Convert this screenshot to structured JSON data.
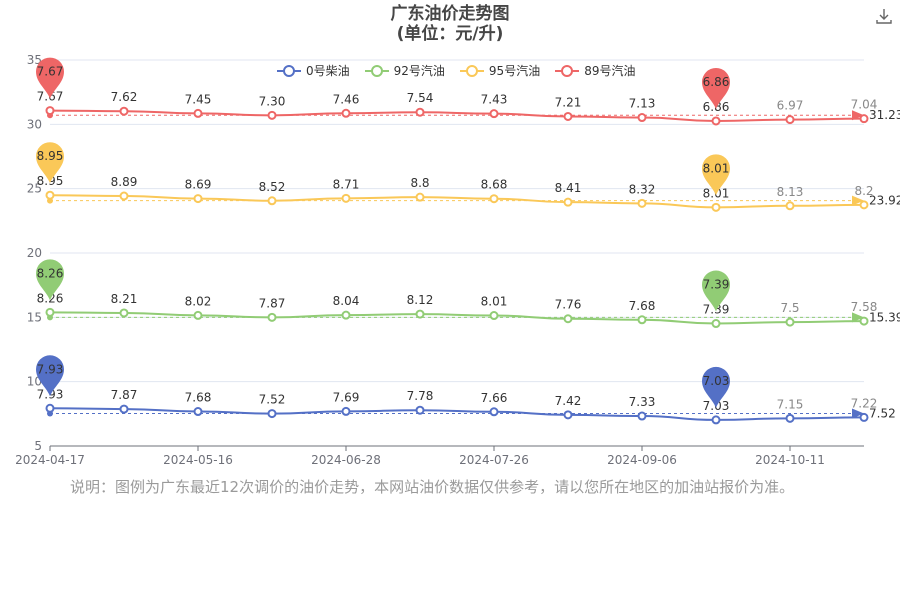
{
  "title_line1": "广东油价走势图",
  "title_line2": "(单位：元/升)",
  "note": "说明：图例为广东最近12次调价的油价走势，本网站油价数据仅供参考，请以您所在地区的加油站报价为准。",
  "icons": {
    "download": "download-icon"
  },
  "chart_data": {
    "type": "line",
    "title": "广东油价走势图",
    "subtitle": "(单位：元/升)",
    "x_tick_labels": [
      "2024-04-17",
      "2024-05-16",
      "2024-06-28",
      "2024-07-26",
      "2024-09-06",
      "2024-10-11"
    ],
    "y_tick_labels": [
      "5",
      "10",
      "15",
      "20",
      "25",
      "30",
      "35"
    ],
    "ylim": [
      5,
      35
    ],
    "grid": true,
    "legend_position": "top",
    "series": [
      {
        "name": "0号柴油",
        "color": "#5470c6",
        "values": [
          7.93,
          7.87,
          7.68,
          7.52,
          7.69,
          7.78,
          7.66,
          7.42,
          7.33,
          7.03,
          7.15,
          7.22
        ],
        "labels": [
          "7.93",
          "7.87",
          "7.68",
          "7.52",
          "7.69",
          "7.78",
          "7.66",
          "7.42",
          "7.33",
          "7.03",
          "7.15",
          "7.22"
        ],
        "max_label": "7.93",
        "min_label": "7.03",
        "avg_label": "7.52"
      },
      {
        "name": "92号汽油",
        "color": "#91cc75",
        "values": [
          8.26,
          8.21,
          8.02,
          7.87,
          8.04,
          8.12,
          8.01,
          7.76,
          7.68,
          7.39,
          7.5,
          7.58
        ],
        "labels": [
          "8.26",
          "8.21",
          "8.02",
          "7.87",
          "8.04",
          "8.12",
          "8.01",
          "7.76",
          "7.68",
          "7.39",
          "7.5",
          "7.58"
        ],
        "max_label": "8.26",
        "min_label": "7.39",
        "avg_label": "15.39"
      },
      {
        "name": "95号汽油",
        "color": "#fac858",
        "values": [
          8.95,
          8.89,
          8.69,
          8.52,
          8.71,
          8.8,
          8.68,
          8.41,
          8.32,
          8.01,
          8.13,
          8.2
        ],
        "labels": [
          "8.95",
          "8.89",
          "8.69",
          "8.52",
          "8.71",
          "8.8",
          "8.68",
          "8.41",
          "8.32",
          "8.01",
          "8.13",
          "8.2"
        ],
        "max_label": "8.95",
        "min_label": "8.01",
        "avg_label": "23.92"
      },
      {
        "name": "89号汽油",
        "color": "#ee6666",
        "values": [
          7.67,
          7.62,
          7.45,
          7.3,
          7.46,
          7.54,
          7.43,
          7.21,
          7.13,
          6.86,
          6.97,
          7.04
        ],
        "labels": [
          "7.67",
          "7.62",
          "7.45",
          "7.30",
          "7.46",
          "7.54",
          "7.43",
          "7.21",
          "7.13",
          "6.86",
          "6.97",
          "7.04"
        ],
        "max_label": "7.67",
        "min_label": "6.86",
        "avg_label": "31.23"
      }
    ]
  }
}
